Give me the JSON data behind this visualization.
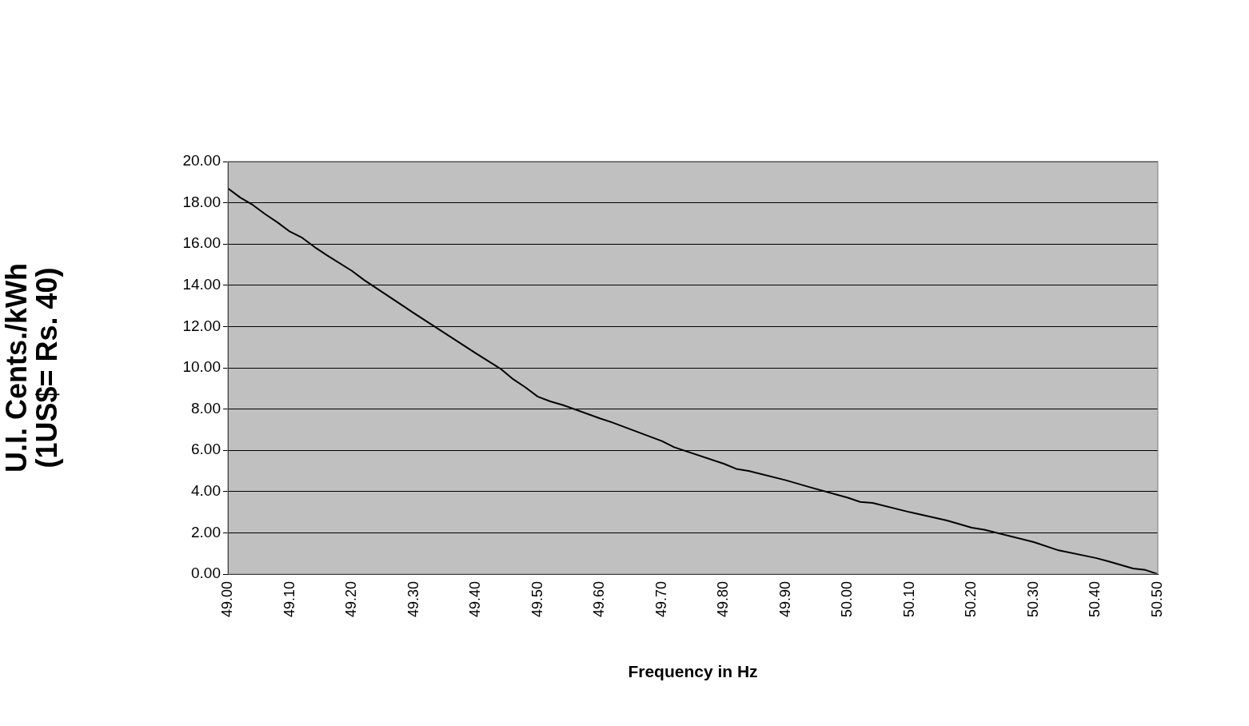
{
  "chart_data": {
    "type": "line",
    "xlabel": "Frequency in Hz",
    "ylabel": "U.I. Cents./kWh\n(1US$= Rs. 40)",
    "x": [
      49.0,
      49.02,
      49.04,
      49.06,
      49.08,
      49.1,
      49.12,
      49.14,
      49.16,
      49.2,
      49.22,
      49.3,
      49.4,
      49.44,
      49.46,
      49.48,
      49.5,
      49.52,
      49.54,
      49.6,
      49.62,
      49.7,
      49.72,
      49.8,
      49.82,
      49.84,
      49.9,
      49.94,
      50.0,
      50.02,
      50.04,
      50.1,
      50.16,
      50.2,
      50.22,
      50.3,
      50.34,
      50.4,
      50.42,
      50.46,
      50.48,
      50.5
    ],
    "series": [
      {
        "color": "#000000",
        "values": [
          18.7,
          18.25,
          17.9,
          17.45,
          17.05,
          16.6,
          16.3,
          15.85,
          15.45,
          14.7,
          14.25,
          12.65,
          10.7,
          9.95,
          9.45,
          9.05,
          8.6,
          8.37,
          8.2,
          7.55,
          7.35,
          6.45,
          6.15,
          5.35,
          5.1,
          5.0,
          4.55,
          4.2,
          3.7,
          3.5,
          3.45,
          3.0,
          2.6,
          2.25,
          2.15,
          1.55,
          1.15,
          0.78,
          0.62,
          0.27,
          0.2,
          0
        ]
      }
    ],
    "xlim": [
      49.0,
      50.5
    ],
    "xticks": [
      {
        "value": 49.0,
        "label": "49.00"
      },
      {
        "value": 49.1,
        "label": "49.10"
      },
      {
        "value": 49.2,
        "label": "49.20"
      },
      {
        "value": 49.3,
        "label": "49.30"
      },
      {
        "value": 49.4,
        "label": "49.40"
      },
      {
        "value": 49.5,
        "label": "49.50"
      },
      {
        "value": 49.6,
        "label": "49.60"
      },
      {
        "value": 49.7,
        "label": "49.70"
      },
      {
        "value": 49.8,
        "label": "49.80"
      },
      {
        "value": 49.9,
        "label": "49.90"
      },
      {
        "value": 50.0,
        "label": "50.00"
      },
      {
        "value": 50.1,
        "label": "50.10"
      },
      {
        "value": 50.2,
        "label": "50.20"
      },
      {
        "value": 50.3,
        "label": "50.30"
      },
      {
        "value": 50.4,
        "label": "50.40"
      },
      {
        "value": 50.5,
        "label": "50.50"
      }
    ],
    "ylim": [
      0,
      20
    ],
    "yticks": [
      {
        "value": 0,
        "label": "0.00"
      },
      {
        "value": 2,
        "label": "2.00"
      },
      {
        "value": 4,
        "label": "4.00"
      },
      {
        "value": 6,
        "label": "6.00"
      },
      {
        "value": 8,
        "label": "8.00"
      },
      {
        "value": 10,
        "label": "10.00"
      },
      {
        "value": 12,
        "label": "12.00"
      },
      {
        "value": 14,
        "label": "14.00"
      },
      {
        "value": 16,
        "label": "16.00"
      },
      {
        "value": 18,
        "label": "18.00"
      },
      {
        "value": 20,
        "label": "20.00"
      }
    ],
    "grid": "y",
    "legend": false,
    "marker": "none",
    "line_style": "solid"
  }
}
